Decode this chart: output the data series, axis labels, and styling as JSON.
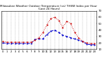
{
  "title": "Milwaukee Weather Outdoor Temperature (vs) THSW Index per Hour (Last 24 Hours)",
  "background_color": "#ffffff",
  "grid_color": "#aaaaaa",
  "hours": [
    0,
    1,
    2,
    3,
    4,
    5,
    6,
    7,
    8,
    9,
    10,
    11,
    12,
    13,
    14,
    15,
    16,
    17,
    18,
    19,
    20,
    21,
    22,
    23
  ],
  "temp": [
    20,
    19,
    19,
    19,
    19,
    19,
    19,
    19,
    25,
    26,
    26,
    33,
    38,
    40,
    36,
    32,
    30,
    28,
    26,
    24,
    22,
    18,
    17,
    17
  ],
  "thsw": [
    22,
    21,
    21,
    21,
    21,
    21,
    21,
    21,
    24,
    28,
    36,
    48,
    58,
    60,
    55,
    44,
    54,
    50,
    36,
    28,
    22,
    20,
    19,
    19
  ],
  "temp_color": "#0000cc",
  "thsw_color": "#cc0000",
  "ylim": [
    10,
    70
  ],
  "ytick_labels": [
    "10",
    "20",
    "30",
    "40",
    "50",
    "60",
    "70"
  ],
  "ytick_vals": [
    10,
    20,
    30,
    40,
    50,
    60,
    70
  ],
  "title_fontsize": 3.0,
  "tick_fontsize": 2.8,
  "figsize": [
    1.6,
    0.87
  ],
  "dpi": 100
}
